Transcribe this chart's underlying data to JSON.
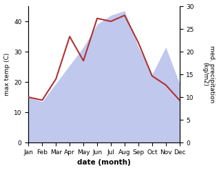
{
  "months": [
    "Jan",
    "Feb",
    "Mar",
    "Apr",
    "May",
    "Jun",
    "Jul",
    "Aug",
    "Sep",
    "Oct",
    "Nov",
    "Dec"
  ],
  "temp": [
    15,
    14,
    21,
    35,
    27,
    41,
    40,
    42,
    33,
    22,
    19,
    14
  ],
  "precip": [
    10,
    9,
    13,
    17,
    21,
    26,
    28,
    29,
    21,
    15,
    21,
    13
  ],
  "temp_color": "#b03030",
  "precip_color": "#c0c8ee",
  "ylabel_left": "max temp (C)",
  "ylabel_right": "med. precipitation\n(kg/m2)",
  "xlabel": "date (month)",
  "ylim_left": [
    0,
    45
  ],
  "ylim_right": [
    0,
    30
  ],
  "yticks_left": [
    0,
    10,
    20,
    30,
    40
  ],
  "yticks_right": [
    0,
    5,
    10,
    15,
    20,
    25,
    30
  ],
  "background_color": "#ffffff"
}
